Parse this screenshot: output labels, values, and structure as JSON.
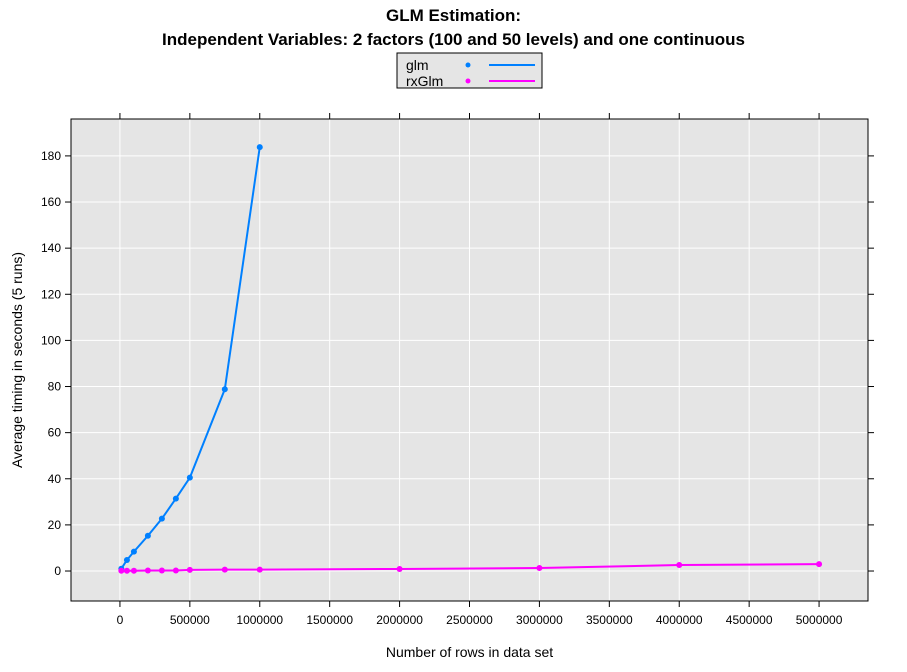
{
  "chart_data": {
    "type": "line",
    "title": "GLM Estimation:",
    "subtitle": "Independent Variables: 2 factors (100 and 50 levels) and one continuous",
    "xlabel": "Number of rows in data set",
    "ylabel": "Average timing in seconds (5 runs)",
    "xlim": [
      -350000,
      5350000
    ],
    "ylim": [
      -13,
      196
    ],
    "xticks": [
      0,
      500000,
      1000000,
      1500000,
      2000000,
      2500000,
      3000000,
      3500000,
      4000000,
      4500000,
      5000000
    ],
    "yticks": [
      0,
      20,
      40,
      60,
      80,
      100,
      120,
      140,
      160,
      180
    ],
    "grid": true,
    "background": "#e5e5e5",
    "legend": "top",
    "series": [
      {
        "name": "glm",
        "color": "#0080ff",
        "x": [
          10000,
          50000,
          100000,
          200000,
          300000,
          400000,
          500000,
          750000,
          1000000
        ],
        "y": [
          1.0,
          4.8,
          8.4,
          15.3,
          22.7,
          31.4,
          40.5,
          78.8,
          183.8
        ]
      },
      {
        "name": "rxGlm",
        "color": "#ff00ff",
        "x": [
          10000,
          50000,
          100000,
          200000,
          300000,
          400000,
          500000,
          750000,
          1000000,
          2000000,
          3000000,
          4000000,
          5000000
        ],
        "y": [
          0.1,
          0.1,
          0.1,
          0.2,
          0.2,
          0.2,
          0.5,
          0.6,
          0.6,
          0.9,
          1.3,
          2.6,
          3.0
        ]
      }
    ]
  }
}
